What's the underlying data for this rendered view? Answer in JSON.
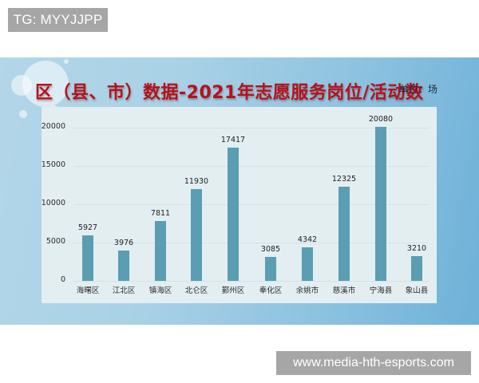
{
  "watermarks": {
    "top": "TG: MYYJJPP",
    "bottom": "www.media-hth-esports.com"
  },
  "header": {
    "title": "区（县、市）数据-2021年志愿服务岗位/活动数",
    "unit": "单位：场"
  },
  "colors": {
    "bar": "#5b9db3",
    "title": "#b3121c",
    "panel": "#e3eef1",
    "banner_left": "#b3d6e8",
    "banner_right": "#6fb1d8"
  },
  "chart_data": {
    "type": "bar",
    "title": "区（县、市）数据-2021年志愿服务岗位/活动数",
    "unit": "单位：场",
    "xlabel": "",
    "ylabel": "",
    "categories": [
      "海曙区",
      "江北区",
      "镇海区",
      "北仑区",
      "鄞州区",
      "奉化区",
      "余姚市",
      "慈溪市",
      "宁海县",
      "象山县"
    ],
    "values": [
      5927,
      3976,
      7811,
      11930,
      17417,
      3085,
      4342,
      12325,
      20080,
      3210
    ],
    "value_labels": [
      "5927",
      "3976",
      "7811",
      "11930",
      "17417",
      "3085",
      "4342",
      "12325",
      "20080",
      "3210"
    ],
    "yticks": [
      0,
      5000,
      10000,
      15000,
      20000
    ],
    "ytick_labels": [
      "0",
      "5000",
      "10000",
      "15000",
      "20000"
    ],
    "ylim": [
      0,
      20000
    ],
    "grid": true,
    "legend": null
  }
}
